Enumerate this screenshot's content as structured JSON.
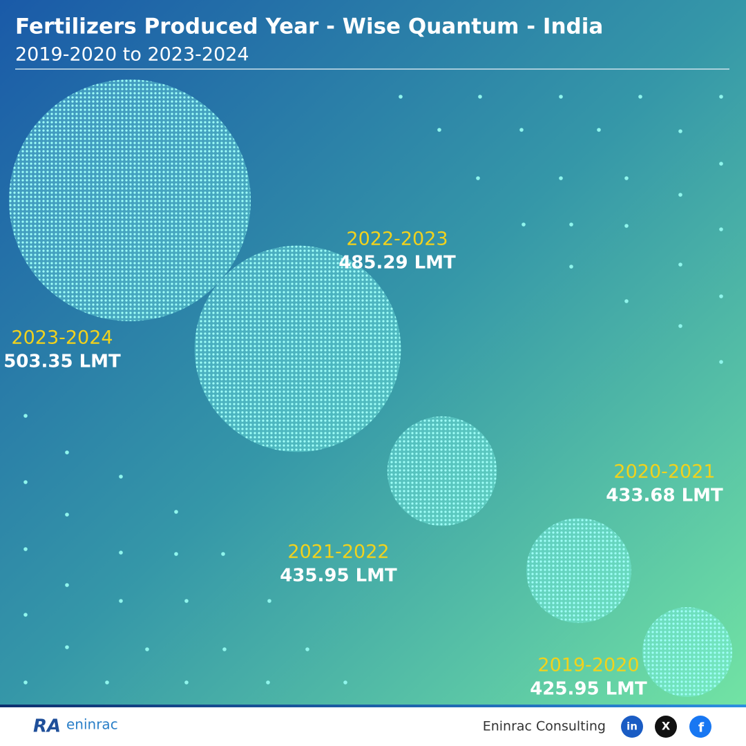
{
  "chart_data": {
    "type": "bubble",
    "title": "Fertilizers Produced Year - Wise Quantum - India",
    "subtitle": "2019-2020 to 2023-2024",
    "categories": [
      "2023-2024",
      "2022-2023",
      "2021-2022",
      "2020-2021",
      "2019-2020"
    ],
    "values": [
      503.35,
      485.29,
      435.95,
      433.68,
      425.95
    ],
    "value_labels": [
      "503.35 LMT",
      "485.29 LMT",
      "435.95 LMT",
      "433.68 LMT",
      "425.95 LMT"
    ],
    "color": "#7ff5ee"
  },
  "footer": {
    "logo_mark": "RA",
    "logo_name": "eninrac",
    "brand": "Eninrac Consulting",
    "social": [
      "in",
      "X",
      "f"
    ]
  }
}
